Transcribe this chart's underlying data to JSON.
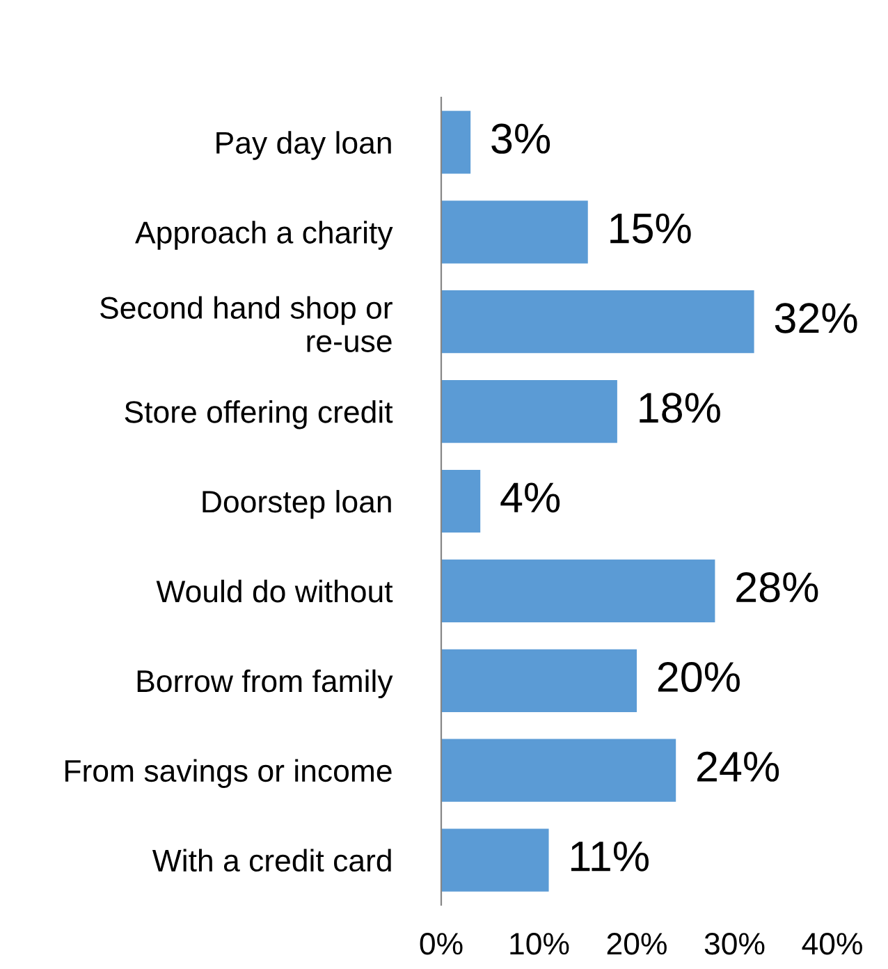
{
  "chart_data": {
    "type": "bar",
    "orientation": "horizontal",
    "categories": [
      "Pay day loan",
      "Approach a charity",
      "Second hand shop or\nre-use",
      "Store offering credit",
      "Doorstep loan",
      "Would do without",
      "Borrow from family",
      "From savings or income",
      "With a credit card"
    ],
    "values": [
      3,
      15,
      32,
      18,
      4,
      28,
      20,
      24,
      11
    ],
    "value_labels": [
      "3%",
      "15%",
      "32%",
      "18%",
      "4%",
      "28%",
      "20%",
      "24%",
      "11%"
    ],
    "color": "#5b9bd5",
    "xlim": [
      0,
      40
    ],
    "xticks": [
      {
        "value": 0,
        "label": "0%"
      },
      {
        "value": 10,
        "label": "10%"
      },
      {
        "value": 20,
        "label": "20%"
      },
      {
        "value": 30,
        "label": "30%"
      },
      {
        "value": 40,
        "label": "40%"
      }
    ],
    "grid": false,
    "legend": false
  }
}
